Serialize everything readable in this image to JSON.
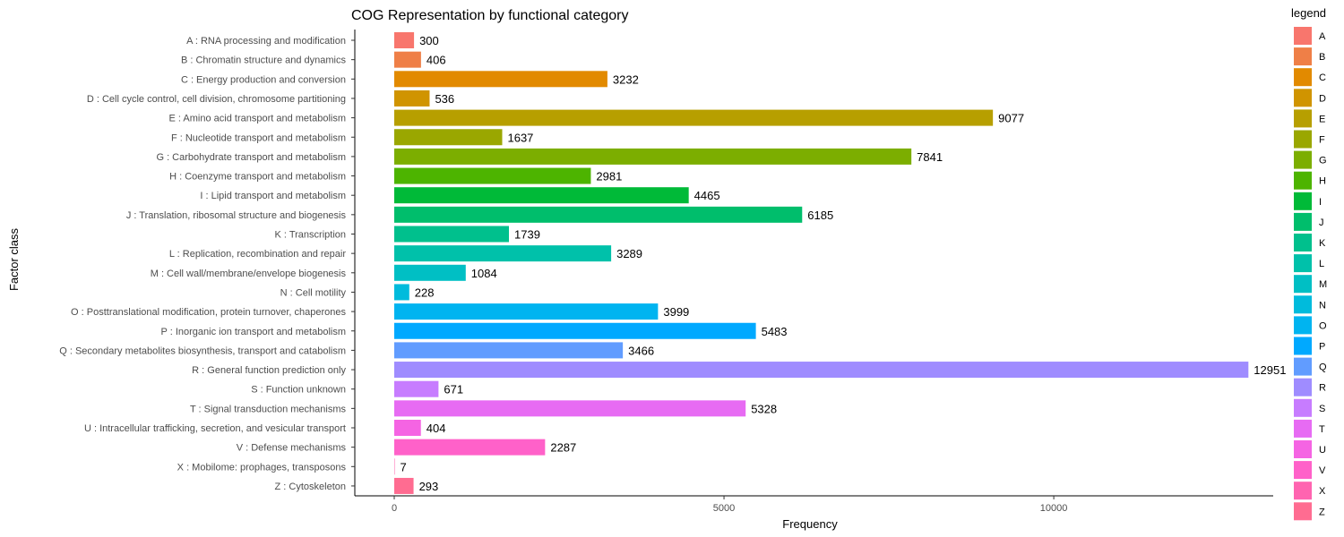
{
  "chart_data": {
    "type": "bar",
    "orientation": "horizontal",
    "title": "COG Representation by functional category",
    "xlabel": "Frequency",
    "ylabel": "Factor class",
    "xlim": [
      0,
      13300
    ],
    "xticks": [
      0,
      5000,
      10000
    ],
    "grid": false,
    "legend_title": "legend",
    "legend_placement": "right",
    "categories": [
      {
        "key": "A",
        "label": "A : RNA processing and modification",
        "value": 300,
        "color": "#F8766D"
      },
      {
        "key": "B",
        "label": "B : Chromatin structure and dynamics",
        "value": 406,
        "color": "#EF7F47"
      },
      {
        "key": "C",
        "label": "C : Energy production and conversion",
        "value": 3232,
        "color": "#E28A00"
      },
      {
        "key": "D",
        "label": "D : Cell cycle control, cell division, chromosome partitioning",
        "value": 536,
        "color": "#D09400"
      },
      {
        "key": "E",
        "label": "E : Amino acid transport and metabolism",
        "value": 9077,
        "color": "#B79F00"
      },
      {
        "key": "F",
        "label": "F : Nucleotide transport and metabolism",
        "value": 1637,
        "color": "#9AA700"
      },
      {
        "key": "G",
        "label": "G : Carbohydrate transport and metabolism",
        "value": 7841,
        "color": "#7CAE00"
      },
      {
        "key": "H",
        "label": "H : Coenzyme transport and metabolism",
        "value": 2981,
        "color": "#4DB400"
      },
      {
        "key": "I",
        "label": "I : Lipid transport and metabolism",
        "value": 4465,
        "color": "#00BA38"
      },
      {
        "key": "J",
        "label": "J : Translation, ribosomal structure and biogenesis",
        "value": 6185,
        "color": "#00BE6C"
      },
      {
        "key": "K",
        "label": "K : Transcription",
        "value": 1739,
        "color": "#00C08D"
      },
      {
        "key": "L",
        "label": "L : Replication, recombination and repair",
        "value": 3289,
        "color": "#00C1AA"
      },
      {
        "key": "M",
        "label": "M : Cell wall/membrane/envelope biogenesis",
        "value": 1084,
        "color": "#00BFC4"
      },
      {
        "key": "N",
        "label": "N : Cell motility",
        "value": 228,
        "color": "#00BBDC"
      },
      {
        "key": "O",
        "label": "O : Posttranslational modification, protein turnover, chaperones",
        "value": 3999,
        "color": "#00B4F0"
      },
      {
        "key": "P",
        "label": "P : Inorganic ion transport and metabolism",
        "value": 5483,
        "color": "#00A9FF"
      },
      {
        "key": "Q",
        "label": "Q : Secondary metabolites biosynthesis, transport and catabolism",
        "value": 3466,
        "color": "#619CFF"
      },
      {
        "key": "R",
        "label": "R : General function prediction only",
        "value": 12951,
        "color": "#9F8CFF"
      },
      {
        "key": "S",
        "label": "S : Function unknown",
        "value": 671,
        "color": "#C77CFF"
      },
      {
        "key": "T",
        "label": "T : Signal transduction mechanisms",
        "value": 5328,
        "color": "#E76BF3"
      },
      {
        "key": "U",
        "label": "U : Intracellular trafficking, secretion, and vesicular transport",
        "value": 404,
        "color": "#F564E3"
      },
      {
        "key": "V",
        "label": "V : Defense mechanisms",
        "value": 2287,
        "color": "#FF61C9"
      },
      {
        "key": "X",
        "label": "X : Mobilome: prophages, transposons",
        "value": 7,
        "color": "#FF64B0"
      },
      {
        "key": "Z",
        "label": "Z : Cytoskeleton",
        "value": 293,
        "color": "#FF6C91"
      }
    ]
  }
}
